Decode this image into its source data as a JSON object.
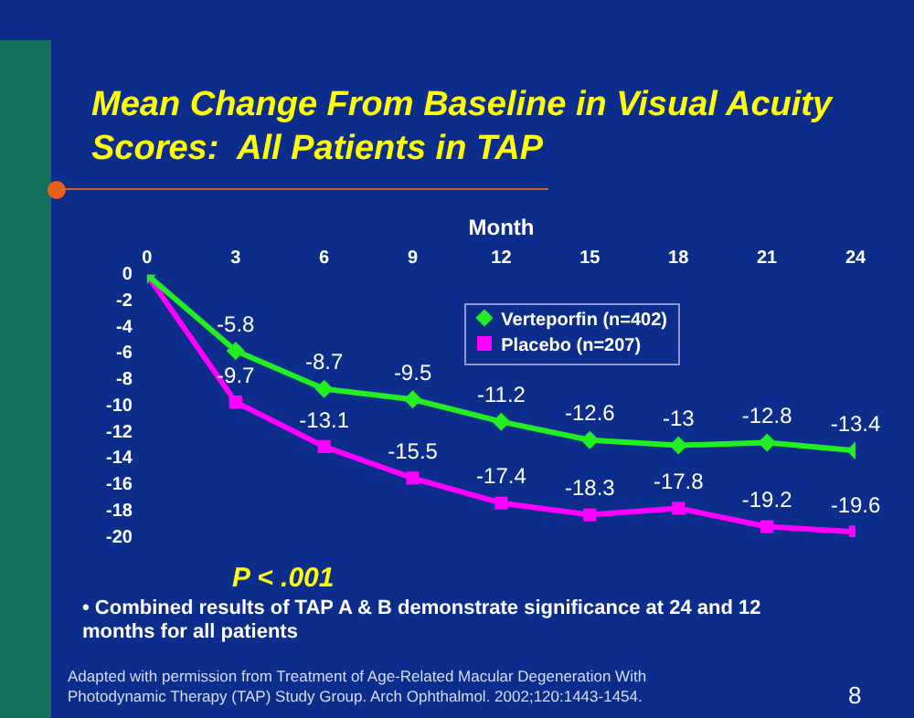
{
  "chart_data": {
    "type": "line",
    "title": "Mean Change From Baseline in Visual Acuity Scores:  All Patients in TAP",
    "xlabel": "Month",
    "x": [
      0,
      3,
      6,
      9,
      12,
      15,
      18,
      21,
      24
    ],
    "xlim": [
      0,
      24
    ],
    "xticks": [
      0,
      3,
      6,
      9,
      12,
      15,
      18,
      21,
      24
    ],
    "ylim": [
      -20,
      0
    ],
    "yticks": [
      0,
      -2,
      -4,
      -6,
      -8,
      -10,
      -12,
      -14,
      -16,
      -18,
      -20
    ],
    "series": [
      {
        "name": "Verteporfin (n=402)",
        "color": "#22ee22",
        "marker": "diamond",
        "values": [
          0,
          -5.8,
          -8.7,
          -9.5,
          -11.2,
          -12.6,
          -13,
          -12.8,
          -13.4
        ],
        "value_labels": [
          null,
          "-5.8",
          "-8.7",
          "-9.5",
          "-11.2",
          "-12.6",
          "-13",
          "-12.8",
          "-13.4"
        ]
      },
      {
        "name": "Placebo (n=207)",
        "color": "#ff00ff",
        "marker": "square",
        "values": [
          0,
          -9.7,
          -13.1,
          -15.5,
          -17.4,
          -18.3,
          -17.8,
          -19.2,
          -19.6
        ],
        "value_labels": [
          null,
          "-9.7",
          "-13.1",
          "-15.5",
          "-17.4",
          "-18.3",
          "-17.8",
          "-19.2",
          "-19.6"
        ]
      }
    ],
    "grid": false,
    "legend": "top right",
    "line_style": "solid",
    "annotations": [
      "P < .001",
      "• Combined results of TAP A & B demonstrate significance at 24 and 12 months for all patients",
      "Adapted with permission from Treatment of Age-Related Macular Degeneration With Photodynamic Therapy (TAP) Study Group. Arch Ophthalmol. 2002;120:1443-1454.",
      "8"
    ]
  }
}
